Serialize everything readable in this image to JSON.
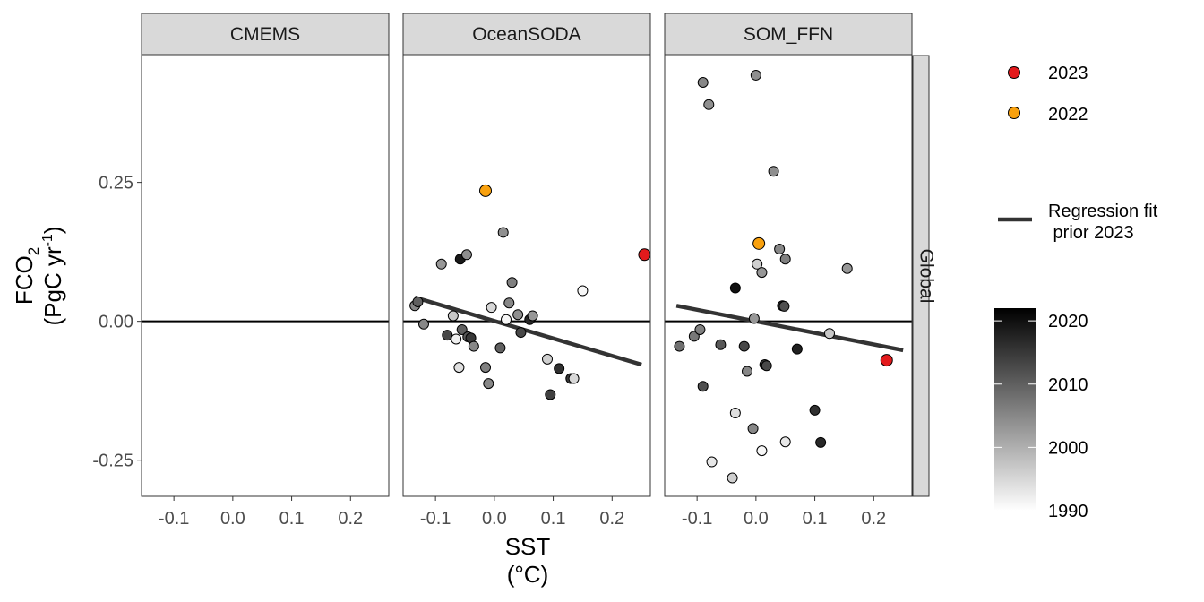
{
  "chart_data": {
    "type": "scatter",
    "x_axis": {
      "label_line1": "SST",
      "label_line2": "(°C)",
      "range": [
        -0.155,
        0.265
      ],
      "ticks": [
        -0.1,
        0.0,
        0.1,
        0.2
      ],
      "tick_labels": [
        "-0.1",
        "0.0",
        "0.1",
        "0.2"
      ]
    },
    "y_axis": {
      "label_line1_main": "FCO",
      "label_line1_sub": "2",
      "label_line2_pre": "(PgC yr",
      "label_line2_sup": "-1",
      "label_line2_post": ")",
      "range": [
        -0.315,
        0.48
      ],
      "ticks": [
        -0.25,
        0.0,
        0.25
      ],
      "tick_labels": [
        "-0.25",
        "0.00",
        "0.25"
      ]
    },
    "row_label": "Global",
    "zero_line": 0,
    "panels": [
      {
        "name": "CMEMS",
        "points": [],
        "highlight": [],
        "fit": null
      },
      {
        "name": "OceanSODA",
        "points": [
          {
            "x": -0.135,
            "y": 0.028,
            "year": 2005
          },
          {
            "x": -0.13,
            "y": 0.035,
            "year": 2010
          },
          {
            "x": -0.12,
            "y": -0.005,
            "year": 2005
          },
          {
            "x": -0.09,
            "y": 0.103,
            "year": 2003
          },
          {
            "x": -0.08,
            "y": -0.025,
            "year": 2013
          },
          {
            "x": -0.07,
            "y": 0.01,
            "year": 1997
          },
          {
            "x": -0.065,
            "y": -0.032,
            "year": 1992
          },
          {
            "x": -0.06,
            "y": -0.083,
            "year": 1994
          },
          {
            "x": -0.058,
            "y": 0.112,
            "year": 2019
          },
          {
            "x": -0.055,
            "y": -0.015,
            "year": 2010
          },
          {
            "x": -0.047,
            "y": 0.12,
            "year": 2004
          },
          {
            "x": -0.045,
            "y": -0.028,
            "year": 2011
          },
          {
            "x": -0.04,
            "y": -0.03,
            "year": 2015
          },
          {
            "x": -0.035,
            "y": -0.045,
            "year": 2005
          },
          {
            "x": -0.015,
            "y": -0.083,
            "year": 2006
          },
          {
            "x": -0.01,
            "y": -0.112,
            "year": 2005
          },
          {
            "x": -0.005,
            "y": 0.025,
            "year": 1995
          },
          {
            "x": 0.01,
            "y": -0.048,
            "year": 2010
          },
          {
            "x": 0.015,
            "y": 0.16,
            "year": 2004
          },
          {
            "x": 0.02,
            "y": 0.003,
            "year": 1991
          },
          {
            "x": 0.025,
            "y": 0.033,
            "year": 2005
          },
          {
            "x": 0.03,
            "y": 0.07,
            "year": 2006
          },
          {
            "x": 0.04,
            "y": 0.012,
            "year": 2004
          },
          {
            "x": 0.045,
            "y": -0.02,
            "year": 2013
          },
          {
            "x": 0.06,
            "y": 0.003,
            "year": 2017
          },
          {
            "x": 0.065,
            "y": 0.01,
            "year": 2003
          },
          {
            "x": 0.09,
            "y": -0.068,
            "year": 1996
          },
          {
            "x": 0.095,
            "y": -0.132,
            "year": 2014
          },
          {
            "x": 0.11,
            "y": -0.085,
            "year": 2016
          },
          {
            "x": 0.13,
            "y": -0.103,
            "year": 2015
          },
          {
            "x": 0.135,
            "y": -0.103,
            "year": 1995
          },
          {
            "x": 0.15,
            "y": 0.055,
            "year": 1991
          }
        ],
        "highlight": [
          {
            "x": -0.015,
            "y": 0.235,
            "label": "2022"
          },
          {
            "x": 0.255,
            "y": 0.12,
            "label": "2023"
          }
        ],
        "fit": {
          "x": [
            -0.135,
            0.25
          ],
          "y": [
            0.043,
            -0.078
          ]
        }
      },
      {
        "name": "SOM_FFN",
        "points": [
          {
            "x": -0.13,
            "y": -0.045,
            "year": 2008
          },
          {
            "x": -0.105,
            "y": -0.027,
            "year": 2007
          },
          {
            "x": -0.095,
            "y": -0.015,
            "year": 2006
          },
          {
            "x": -0.09,
            "y": -0.117,
            "year": 2012
          },
          {
            "x": -0.09,
            "y": 0.43,
            "year": 2005
          },
          {
            "x": -0.08,
            "y": 0.39,
            "year": 2004
          },
          {
            "x": -0.075,
            "y": -0.253,
            "year": 1993
          },
          {
            "x": -0.06,
            "y": -0.042,
            "year": 2011
          },
          {
            "x": -0.04,
            "y": -0.282,
            "year": 1996
          },
          {
            "x": -0.035,
            "y": 0.06,
            "year": 2020
          },
          {
            "x": -0.035,
            "y": -0.165,
            "year": 1994
          },
          {
            "x": -0.02,
            "y": -0.045,
            "year": 2013
          },
          {
            "x": -0.015,
            "y": -0.09,
            "year": 2005
          },
          {
            "x": -0.005,
            "y": -0.193,
            "year": 2005
          },
          {
            "x": -0.003,
            "y": 0.005,
            "year": 2003
          },
          {
            "x": 0.0,
            "y": 0.443,
            "year": 2004
          },
          {
            "x": 0.002,
            "y": 0.103,
            "year": 1996
          },
          {
            "x": 0.01,
            "y": -0.233,
            "year": 1991
          },
          {
            "x": 0.01,
            "y": 0.088,
            "year": 2003
          },
          {
            "x": 0.015,
            "y": -0.078,
            "year": 2015
          },
          {
            "x": 0.018,
            "y": -0.08,
            "year": 2013
          },
          {
            "x": 0.03,
            "y": 0.27,
            "year": 2004
          },
          {
            "x": 0.04,
            "y": 0.13,
            "year": 2005
          },
          {
            "x": 0.045,
            "y": 0.028,
            "year": 2017
          },
          {
            "x": 0.048,
            "y": 0.027,
            "year": 2012
          },
          {
            "x": 0.05,
            "y": 0.112,
            "year": 2006
          },
          {
            "x": 0.05,
            "y": -0.217,
            "year": 1993
          },
          {
            "x": 0.07,
            "y": -0.05,
            "year": 2018
          },
          {
            "x": 0.1,
            "y": -0.16,
            "year": 2016
          },
          {
            "x": 0.11,
            "y": -0.218,
            "year": 2017
          },
          {
            "x": 0.125,
            "y": -0.022,
            "year": 1997
          },
          {
            "x": 0.155,
            "y": 0.095,
            "year": 2003
          }
        ],
        "highlight": [
          {
            "x": 0.005,
            "y": 0.14,
            "label": "2022"
          },
          {
            "x": 0.222,
            "y": -0.07,
            "label": "2023"
          }
        ],
        "fit": {
          "x": [
            -0.135,
            0.25
          ],
          "y": [
            0.028,
            -0.052
          ]
        }
      }
    ],
    "legend": {
      "highlights": [
        {
          "label": "2023",
          "color": "#e31a1c"
        },
        {
          "label": "2022",
          "color": "#f9a10e"
        }
      ],
      "fit_label_line1": "Regression fit",
      "fit_label_line2": " prior 2023",
      "colorbar": {
        "range": [
          1990,
          2022
        ],
        "ticks": [
          2020,
          2010,
          2000,
          1990
        ],
        "tick_labels": [
          "2020",
          "2010",
          "2000",
          "1990"
        ],
        "color_low": "#ffffff",
        "color_high": "#000000"
      }
    },
    "colors": {
      "strip_fill": "#d9d9d9",
      "panel_border": "#333333",
      "fit_line": "#333333",
      "zero_line": "#000000"
    }
  }
}
